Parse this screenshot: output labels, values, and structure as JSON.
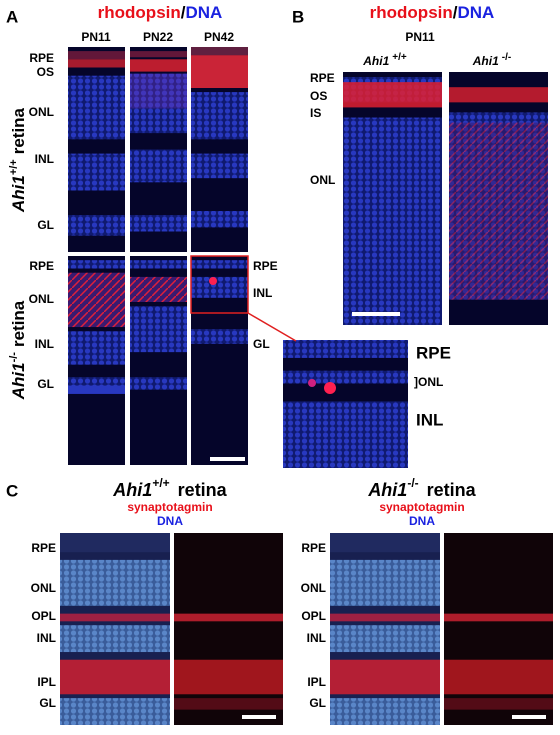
{
  "panel_a": {
    "letter": "A",
    "title": {
      "stain": "rhodopsin",
      "sep": "/",
      "counter": "DNA"
    },
    "ages": [
      "PN11",
      "PN22",
      "PN42"
    ],
    "wt": {
      "gene": "Ahi1",
      "genotype": "+/+",
      "tissue": "retina",
      "layers": [
        "RPE",
        "OS",
        "ONL",
        "INL",
        "GL"
      ]
    },
    "ko": {
      "gene": "Ahi1",
      "genotype": "-/-",
      "tissue": "retina",
      "layers": [
        "RPE",
        "ONL",
        "INL",
        "GL"
      ],
      "pn42_layers": [
        "RPE",
        "INL",
        "GL"
      ]
    },
    "inset_layers": [
      "RPE",
      "]ONL",
      "INL"
    ]
  },
  "panel_b": {
    "letter": "B",
    "title": {
      "stain": "rhodopsin",
      "sep": "/",
      "counter": "DNA"
    },
    "age": "PN11",
    "columns": [
      {
        "gene": "Ahi1",
        "genotype": "+/+"
      },
      {
        "gene": "Ahi1",
        "genotype": "-/-"
      }
    ],
    "layers": [
      "RPE",
      "OS",
      "IS",
      "ONL"
    ]
  },
  "panel_c": {
    "letter": "C",
    "groups": [
      {
        "gene": "Ahi1",
        "genotype": "+/+",
        "tissue": "retina",
        "stain": "synaptotagmin",
        "counter": "DNA",
        "layers": [
          "RPE",
          "ONL",
          "OPL",
          "INL",
          "IPL",
          "GL"
        ]
      },
      {
        "gene": "Ahi1",
        "genotype": "-/-",
        "tissue": "retina",
        "stain": "synaptotagmin",
        "counter": "DNA",
        "layers": [
          "RPE",
          "ONL",
          "OPL",
          "INL",
          "IPL",
          "GL"
        ]
      }
    ]
  }
}
